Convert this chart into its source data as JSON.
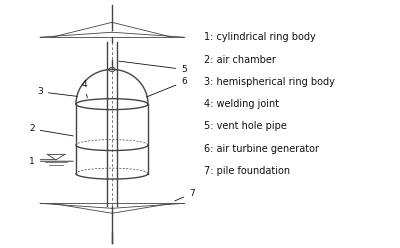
{
  "background_color": "#ffffff",
  "line_color": "#444444",
  "text_color": "#111111",
  "legend_items": [
    "1: cylindrical ring body",
    "2: air chamber",
    "3: hemispherical ring body",
    "4: welding joint",
    "5: vent hole pipe",
    "6: air turbine generator",
    "7: pile foundation"
  ],
  "fig_width": 4.0,
  "fig_height": 2.48,
  "dpi": 100
}
